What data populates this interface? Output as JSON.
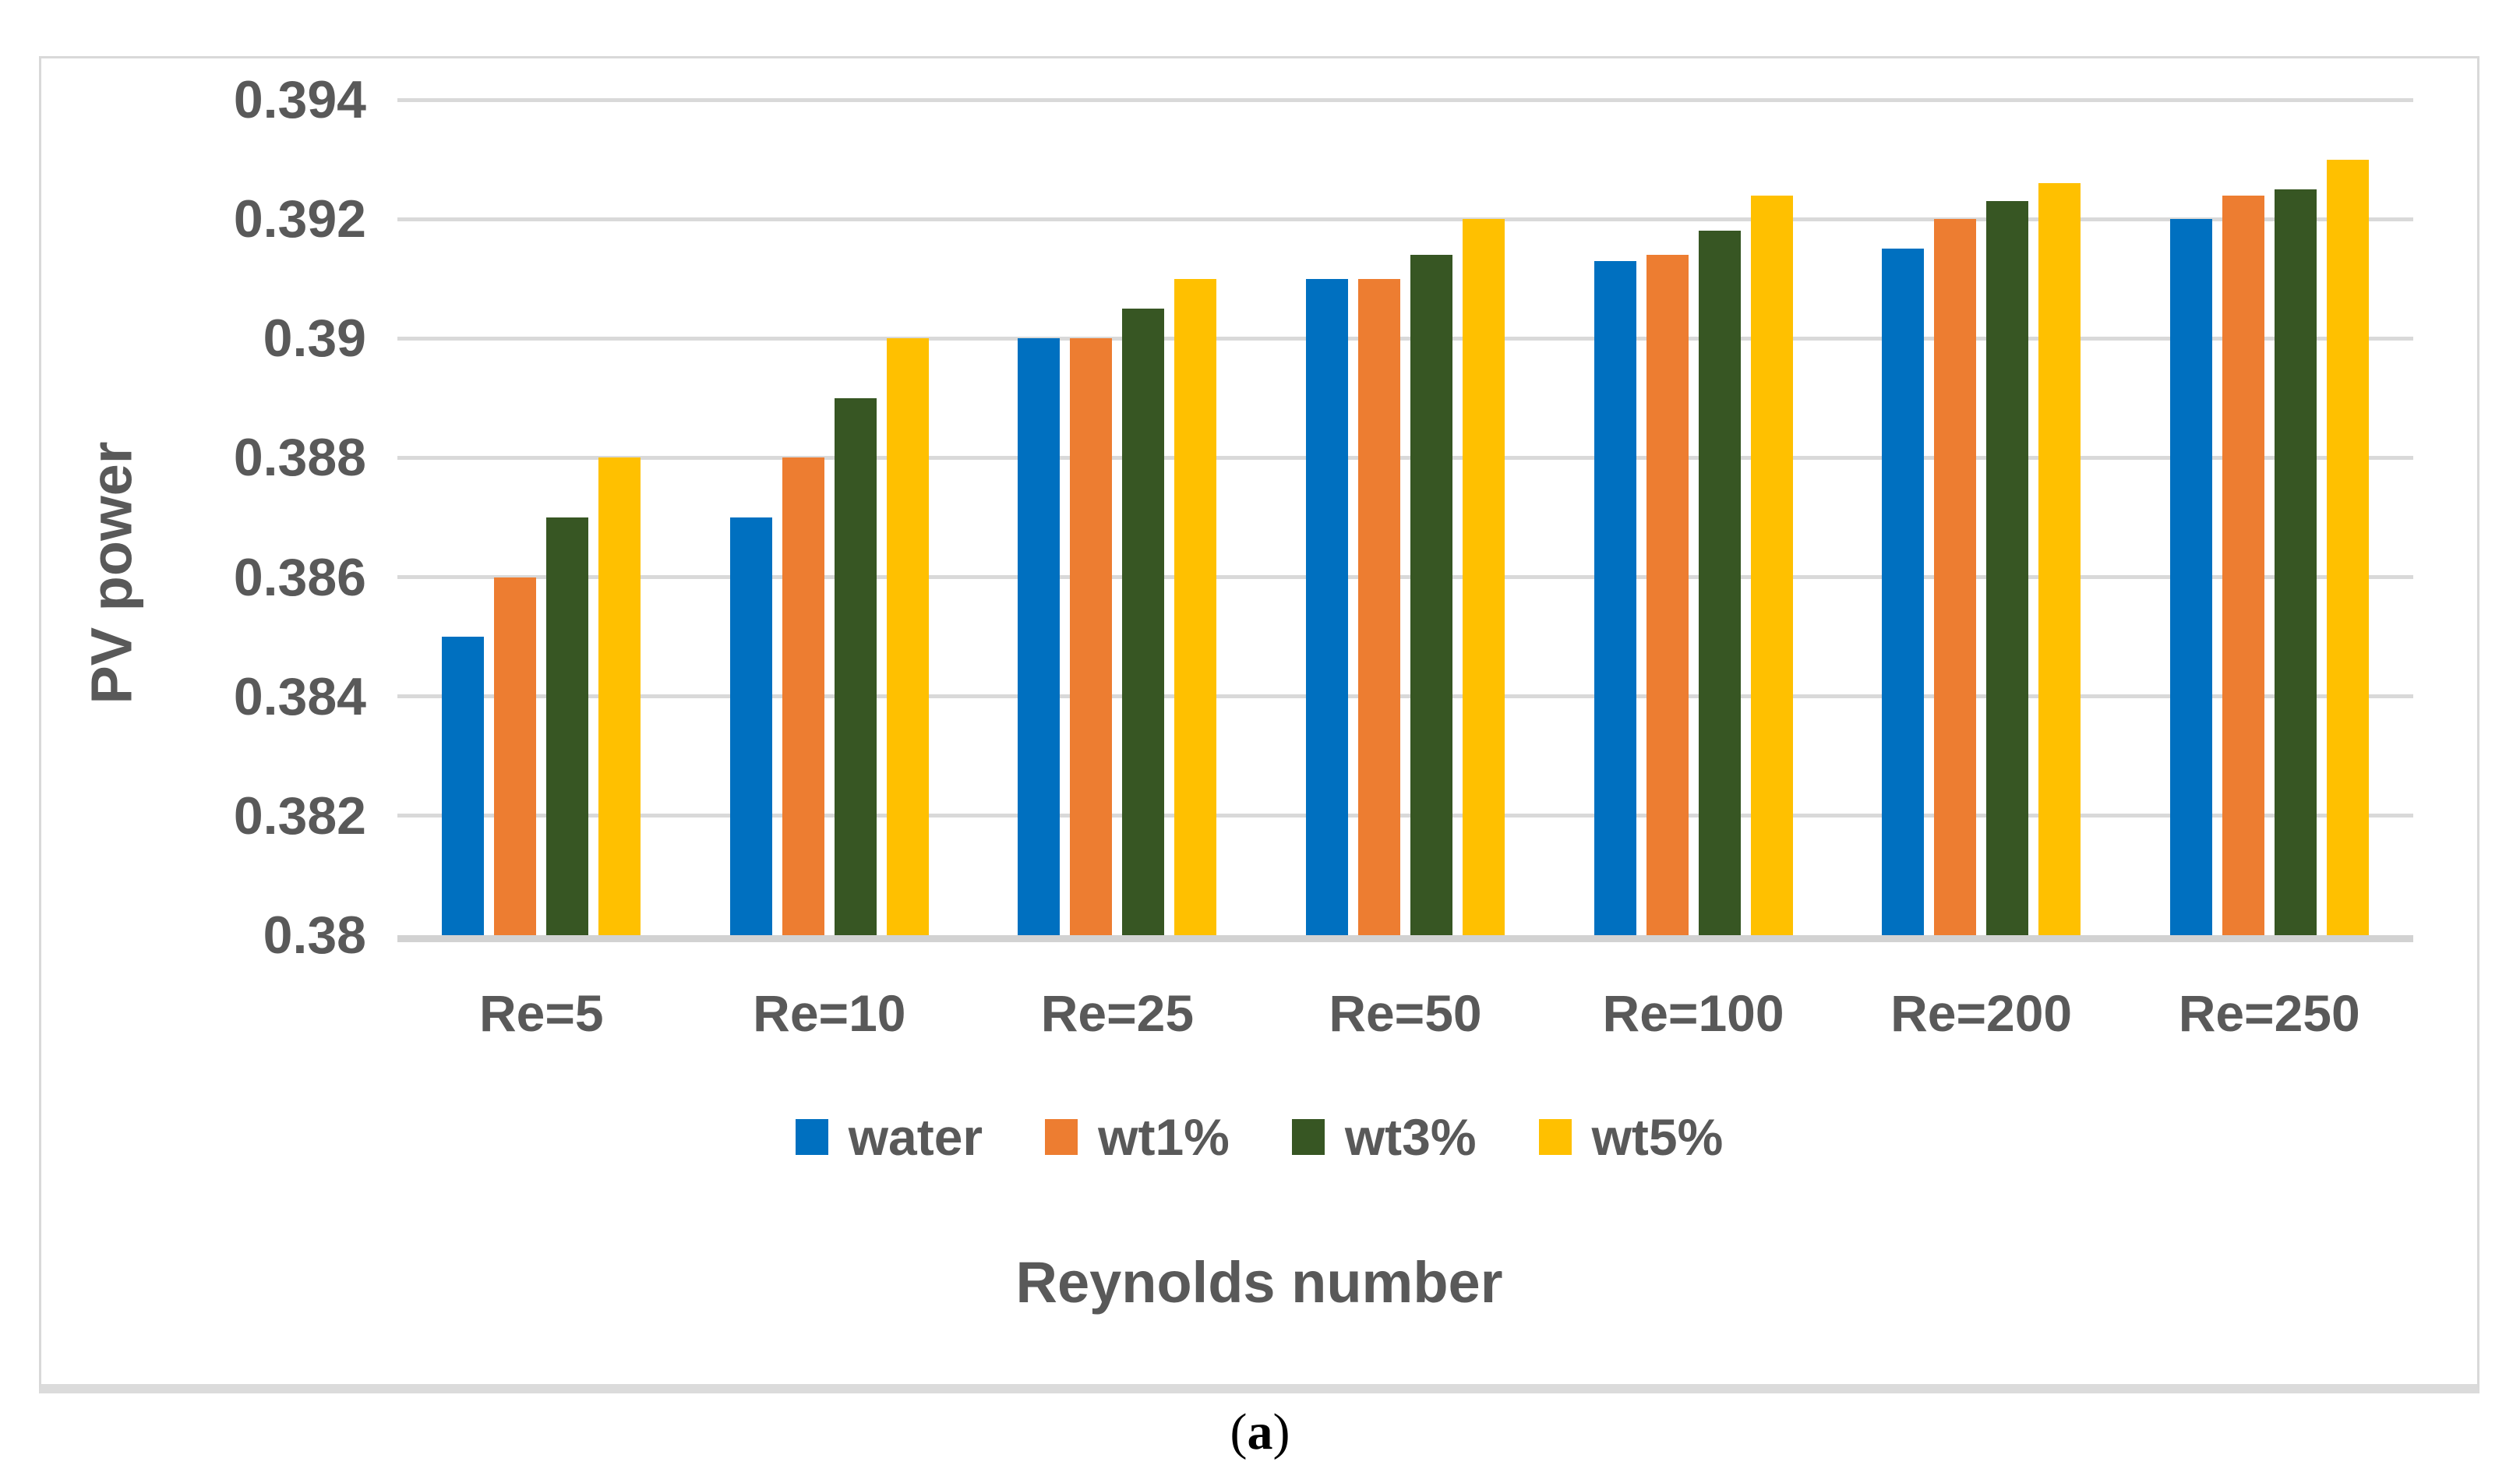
{
  "chart_data": {
    "type": "bar",
    "title": "",
    "xlabel": "Reynolds number",
    "ylabel": "PV power",
    "categories": [
      "Re=5",
      "Re=10",
      "Re=25",
      "Re=50",
      "Re=100",
      "Re=200",
      "Re=250"
    ],
    "series": [
      {
        "name": "water",
        "color": "#0070C0",
        "values": [
          0.385,
          0.387,
          0.39,
          0.391,
          0.3913,
          0.3915,
          0.392
        ]
      },
      {
        "name": "wt1%",
        "color": "#ED7D31",
        "values": [
          0.386,
          0.388,
          0.39,
          0.391,
          0.3914,
          0.392,
          0.3924
        ]
      },
      {
        "name": "wt3%",
        "color": "#375623",
        "values": [
          0.387,
          0.389,
          0.3905,
          0.3914,
          0.3918,
          0.3923,
          0.3925
        ]
      },
      {
        "name": "wt5%",
        "color": "#FFC000",
        "values": [
          0.388,
          0.39,
          0.391,
          0.392,
          0.3924,
          0.3926,
          0.393
        ]
      }
    ],
    "ylim": [
      0.38,
      0.394
    ],
    "yticks": [
      0.38,
      0.382,
      0.384,
      0.386,
      0.388,
      0.39,
      0.392,
      0.394
    ],
    "ytick_labels": [
      "0.38",
      "0.382",
      "0.384",
      "0.386",
      "0.388",
      "0.39",
      "0.392",
      "0.394"
    ],
    "grid": true,
    "legend_position": "bottom",
    "colors": {
      "grid": "#D9D9D9",
      "axis_line": "#D2D2D2",
      "text": "#595959",
      "border": "#D9D9D9"
    }
  },
  "caption": {
    "open": "(",
    "letter": "a",
    "close": ")"
  }
}
